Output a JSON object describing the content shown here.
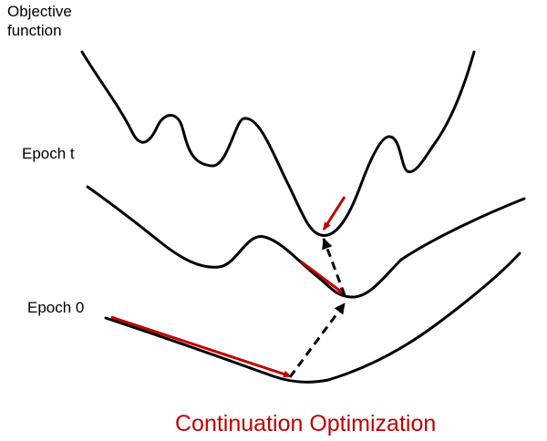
{
  "labels": {
    "objective": "Objective\nfunction",
    "epoch_t": "Epoch t",
    "epoch_0": "Epoch 0"
  },
  "caption": "Continuation Optimization",
  "colors": {
    "curve": "#000000",
    "gradient_arrow": "#c00000",
    "caption": "#c00000"
  }
}
